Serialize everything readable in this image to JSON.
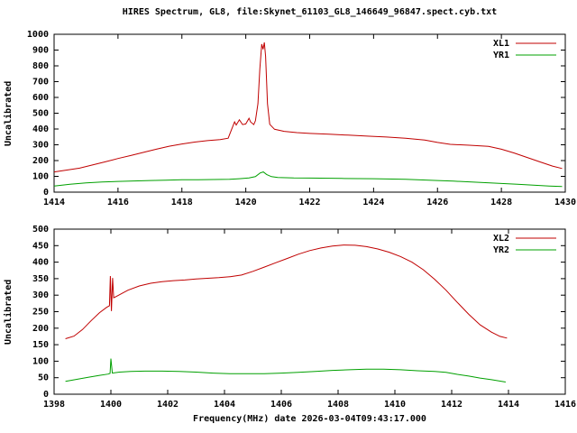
{
  "title": "HIRES Spectrum, GL8, file:Skynet_61103_GL8_146649_96847.spect.cyb.txt",
  "xlabel": "Frequency(MHz) date 2026-03-04T09:43:17.000",
  "colors": {
    "series_red": "#c00000",
    "series_green": "#00a000",
    "axis": "#000000",
    "background": "#ffffff"
  },
  "chart_data": [
    {
      "type": "line",
      "ylabel": "Uncalibrated",
      "xlim": [
        1414,
        1430
      ],
      "ylim": [
        0,
        1000
      ],
      "xticks": [
        1414,
        1416,
        1418,
        1420,
        1422,
        1424,
        1426,
        1428,
        1430
      ],
      "yticks": [
        0,
        100,
        200,
        300,
        400,
        500,
        600,
        700,
        800,
        900,
        1000
      ],
      "grid": false,
      "legend_position": "top-right",
      "series": [
        {
          "name": "XL1",
          "color": "#c00000",
          "points": [
            [
              1414.0,
              128
            ],
            [
              1414.4,
              140
            ],
            [
              1414.8,
              152
            ],
            [
              1415.2,
              172
            ],
            [
              1415.6,
              192
            ],
            [
              1416.0,
              213
            ],
            [
              1416.4,
              232
            ],
            [
              1416.8,
              252
            ],
            [
              1417.2,
              272
            ],
            [
              1417.6,
              291
            ],
            [
              1418.0,
              305
            ],
            [
              1418.4,
              317
            ],
            [
              1418.8,
              326
            ],
            [
              1419.2,
              333
            ],
            [
              1419.45,
              342
            ],
            [
              1419.55,
              395
            ],
            [
              1419.65,
              445
            ],
            [
              1419.7,
              425
            ],
            [
              1419.8,
              458
            ],
            [
              1419.9,
              428
            ],
            [
              1420.0,
              432
            ],
            [
              1420.1,
              468
            ],
            [
              1420.15,
              445
            ],
            [
              1420.25,
              428
            ],
            [
              1420.3,
              452
            ],
            [
              1420.38,
              560
            ],
            [
              1420.44,
              780
            ],
            [
              1420.5,
              938
            ],
            [
              1420.54,
              905
            ],
            [
              1420.58,
              948
            ],
            [
              1420.62,
              860
            ],
            [
              1420.68,
              560
            ],
            [
              1420.75,
              430
            ],
            [
              1420.9,
              398
            ],
            [
              1421.2,
              385
            ],
            [
              1421.6,
              377
            ],
            [
              1422.0,
              372
            ],
            [
              1422.6,
              367
            ],
            [
              1423.2,
              361
            ],
            [
              1423.8,
              355
            ],
            [
              1424.4,
              349
            ],
            [
              1425.0,
              341
            ],
            [
              1425.6,
              330
            ],
            [
              1426.0,
              315
            ],
            [
              1426.4,
              303
            ],
            [
              1427.0,
              297
            ],
            [
              1427.6,
              290
            ],
            [
              1428.0,
              272
            ],
            [
              1428.4,
              248
            ],
            [
              1428.8,
              220
            ],
            [
              1429.2,
              192
            ],
            [
              1429.6,
              165
            ],
            [
              1429.9,
              150
            ]
          ]
        },
        {
          "name": "YR1",
          "color": "#00a000",
          "points": [
            [
              1414.0,
              38
            ],
            [
              1414.5,
              50
            ],
            [
              1415.0,
              58
            ],
            [
              1415.5,
              64
            ],
            [
              1416.0,
              68
            ],
            [
              1416.5,
              71
            ],
            [
              1417.0,
              74
            ],
            [
              1417.5,
              76
            ],
            [
              1418.0,
              78
            ],
            [
              1418.5,
              79
            ],
            [
              1419.0,
              80
            ],
            [
              1419.5,
              82
            ],
            [
              1419.8,
              85
            ],
            [
              1420.1,
              90
            ],
            [
              1420.3,
              98
            ],
            [
              1420.45,
              122
            ],
            [
              1420.55,
              128
            ],
            [
              1420.65,
              112
            ],
            [
              1420.8,
              98
            ],
            [
              1421.0,
              93
            ],
            [
              1421.5,
              90
            ],
            [
              1422.0,
              89
            ],
            [
              1423.0,
              87
            ],
            [
              1424.0,
              85
            ],
            [
              1425.0,
              81
            ],
            [
              1426.0,
              74
            ],
            [
              1426.5,
              70
            ],
            [
              1427.0,
              65
            ],
            [
              1427.5,
              60
            ],
            [
              1428.0,
              55
            ],
            [
              1428.5,
              50
            ],
            [
              1429.0,
              44
            ],
            [
              1429.5,
              39
            ],
            [
              1429.9,
              36
            ]
          ]
        }
      ]
    },
    {
      "type": "line",
      "ylabel": "Uncalibrated",
      "xlim": [
        1398,
        1416
      ],
      "ylim": [
        0,
        500
      ],
      "xticks": [
        1398,
        1400,
        1402,
        1404,
        1406,
        1408,
        1410,
        1412,
        1414,
        1416
      ],
      "yticks": [
        0,
        50,
        100,
        150,
        200,
        250,
        300,
        350,
        400,
        450,
        500
      ],
      "grid": false,
      "legend_position": "top-right",
      "series": [
        {
          "name": "XL2",
          "color": "#c00000",
          "points": [
            [
              1398.4,
              168
            ],
            [
              1398.7,
              176
            ],
            [
              1399.0,
              196
            ],
            [
              1399.3,
              222
            ],
            [
              1399.6,
              247
            ],
            [
              1399.85,
              263
            ],
            [
              1399.95,
              268
            ],
            [
              1399.98,
              358
            ],
            [
              1400.02,
              252
            ],
            [
              1400.06,
              352
            ],
            [
              1400.1,
              292
            ],
            [
              1400.3,
              301
            ],
            [
              1400.6,
              315
            ],
            [
              1401.0,
              328
            ],
            [
              1401.4,
              336
            ],
            [
              1401.8,
              341
            ],
            [
              1402.2,
              344
            ],
            [
              1402.6,
              346
            ],
            [
              1403.0,
              349
            ],
            [
              1403.4,
              351
            ],
            [
              1403.8,
              353
            ],
            [
              1404.2,
              356
            ],
            [
              1404.6,
              361
            ],
            [
              1405.0,
              372
            ],
            [
              1405.4,
              385
            ],
            [
              1405.8,
              398
            ],
            [
              1406.2,
              411
            ],
            [
              1406.6,
              424
            ],
            [
              1407.0,
              435
            ],
            [
              1407.4,
              443
            ],
            [
              1407.8,
              449
            ],
            [
              1408.2,
              452
            ],
            [
              1408.6,
              451
            ],
            [
              1409.0,
              447
            ],
            [
              1409.4,
              440
            ],
            [
              1409.8,
              430
            ],
            [
              1410.2,
              417
            ],
            [
              1410.6,
              400
            ],
            [
              1411.0,
              377
            ],
            [
              1411.4,
              348
            ],
            [
              1411.8,
              315
            ],
            [
              1412.2,
              278
            ],
            [
              1412.6,
              242
            ],
            [
              1413.0,
              210
            ],
            [
              1413.4,
              188
            ],
            [
              1413.7,
              175
            ],
            [
              1413.95,
              170
            ]
          ]
        },
        {
          "name": "YR2",
          "color": "#00a000",
          "points": [
            [
              1398.4,
              39
            ],
            [
              1398.8,
              45
            ],
            [
              1399.2,
              51
            ],
            [
              1399.6,
              57
            ],
            [
              1399.9,
              61
            ],
            [
              1399.97,
              63
            ],
            [
              1400.0,
              108
            ],
            [
              1400.05,
              64
            ],
            [
              1400.3,
              67
            ],
            [
              1400.7,
              69
            ],
            [
              1401.2,
              70
            ],
            [
              1401.8,
              70
            ],
            [
              1402.4,
              69
            ],
            [
              1403.0,
              67
            ],
            [
              1403.6,
              64
            ],
            [
              1404.2,
              62
            ],
            [
              1404.8,
              62
            ],
            [
              1405.4,
              62
            ],
            [
              1406.0,
              64
            ],
            [
              1406.6,
              66
            ],
            [
              1407.2,
              69
            ],
            [
              1407.8,
              72
            ],
            [
              1408.4,
              74
            ],
            [
              1409.0,
              76
            ],
            [
              1409.6,
              76
            ],
            [
              1410.2,
              74
            ],
            [
              1410.8,
              71
            ],
            [
              1411.4,
              69
            ],
            [
              1411.8,
              66
            ],
            [
              1412.2,
              60
            ],
            [
              1412.6,
              55
            ],
            [
              1413.0,
              49
            ],
            [
              1413.4,
              44
            ],
            [
              1413.9,
              37
            ]
          ]
        }
      ]
    }
  ]
}
